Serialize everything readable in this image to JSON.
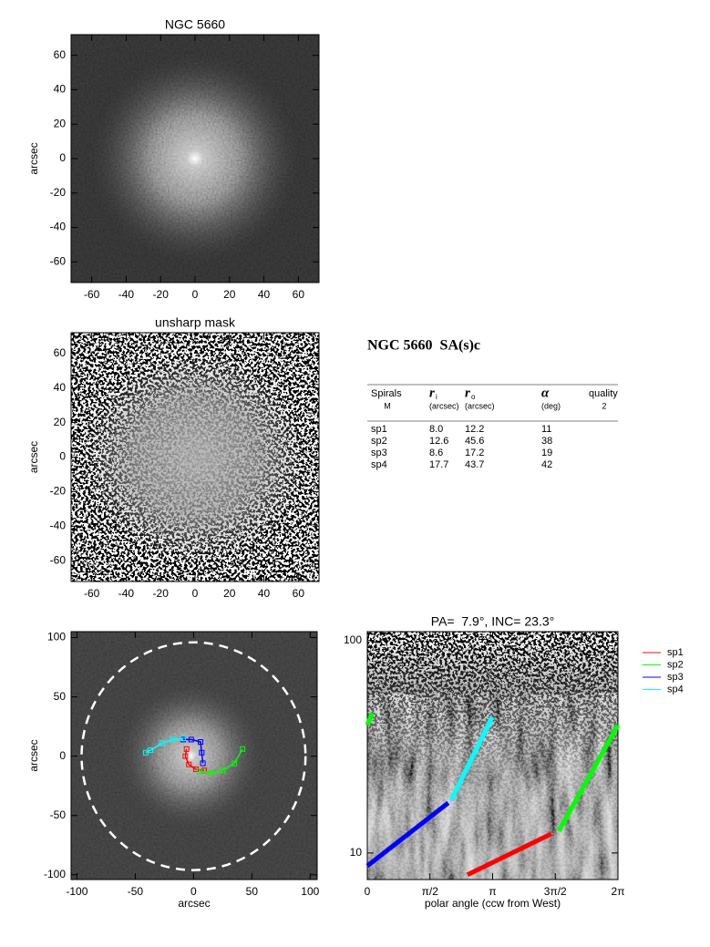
{
  "chart_data": [
    {
      "type": "image",
      "title": "NGC 5660",
      "ylabel": "arcsec",
      "xlim": [
        -72,
        72
      ],
      "ylim": [
        -72,
        72
      ],
      "xticks": [
        -60,
        -40,
        -20,
        0,
        20,
        40,
        60
      ],
      "yticks": [
        -60,
        -40,
        -20,
        0,
        20,
        40,
        60
      ]
    },
    {
      "type": "unsharp",
      "title": "unsharp mask",
      "ylabel": "arcsec",
      "xlim": [
        -72,
        72
      ],
      "ylim": [
        -72,
        72
      ],
      "xticks": [
        -60,
        -40,
        -20,
        0,
        20,
        40,
        60
      ],
      "yticks": [
        -60,
        -40,
        -20,
        0,
        20,
        40,
        60
      ]
    },
    {
      "type": "overlay",
      "xlabel": "arcsec",
      "ylabel": "arcsec",
      "xlim": [
        -105,
        106
      ],
      "ylim": [
        -104,
        105
      ],
      "xticks": [
        -100,
        -50,
        0,
        50,
        100
      ],
      "yticks": [
        -100,
        -50,
        0,
        50,
        100
      ],
      "circle_radius": 96,
      "series": [
        {
          "name": "sp1",
          "color": "#ff0000",
          "x": [
            -6,
            -7,
            -4,
            2,
            9
          ],
          "y": [
            6,
            0,
            -7,
            -11,
            -12
          ]
        },
        {
          "name": "sp2",
          "color": "#00ff00",
          "x": [
            5,
            15,
            25,
            35,
            42
          ],
          "y": [
            -13,
            -14,
            -12,
            -6,
            6
          ]
        },
        {
          "name": "sp3",
          "color": "#0000ff",
          "x": [
            8,
            7,
            6,
            -2,
            -9
          ],
          "y": [
            -6,
            3,
            12,
            14,
            14
          ]
        },
        {
          "name": "sp4",
          "color": "#00ffff",
          "x": [
            -9,
            -18,
            -27,
            -37,
            -41
          ],
          "y": [
            15,
            14,
            11,
            5,
            3
          ]
        }
      ]
    },
    {
      "type": "line",
      "title": "PA=  7.9°, INC= 23.3°",
      "xlabel": "polar angle (ccw from West)",
      "log_y": true,
      "legend": "outside-right",
      "xlim": [
        0,
        6.2832
      ],
      "ylim": [
        7.5,
        110
      ],
      "xticks": [
        0,
        {
          "value": 1.5708,
          "label": "π/2"
        },
        {
          "value": 3.1416,
          "label": "π"
        },
        {
          "value": 4.7124,
          "label": "3π/2"
        },
        {
          "value": 6.2832,
          "label": "2π"
        }
      ],
      "yticks": [
        10,
        100
      ],
      "series": [
        {
          "name": "sp1",
          "color": "#ff0000",
          "x": [
            2.51,
            4.61
          ],
          "y": [
            7.9,
            12.3
          ]
        },
        {
          "name": "sp2",
          "color": "#00ff00",
          "x": [
            4.8,
            6.2832,
            null,
            0,
            0.12
          ],
          "y": [
            12.7,
            40,
            null,
            40,
            45.6
          ]
        },
        {
          "name": "sp3",
          "color": "#0000ff",
          "x": [
            0,
            2.03
          ],
          "y": [
            8.7,
            17.2
          ]
        },
        {
          "name": "sp4",
          "color": "#00ffff",
          "x": [
            2.1,
            3.13
          ],
          "y": [
            17.7,
            43.7
          ]
        }
      ]
    }
  ],
  "table": {
    "title": "NGC 5660  SA(s)c",
    "columns": [
      {
        "label": "Spirals",
        "note": "M"
      },
      {
        "label": "r",
        "subscript": "i",
        "note": "(arcsec)"
      },
      {
        "label": "r",
        "subscript": "o",
        "note": "(arcsec)"
      },
      {
        "label": "α",
        "note": "(deg)"
      },
      {
        "label": "quality",
        "note": "2"
      }
    ],
    "rows": [
      [
        "sp1",
        "8.0",
        "12.2",
        "11"
      ],
      [
        "sp2",
        "12.6",
        "45.6",
        "38"
      ],
      [
        "sp3",
        "8.6",
        "17.2",
        "19"
      ],
      [
        "sp4",
        "17.7",
        "43.7",
        "42"
      ]
    ]
  }
}
